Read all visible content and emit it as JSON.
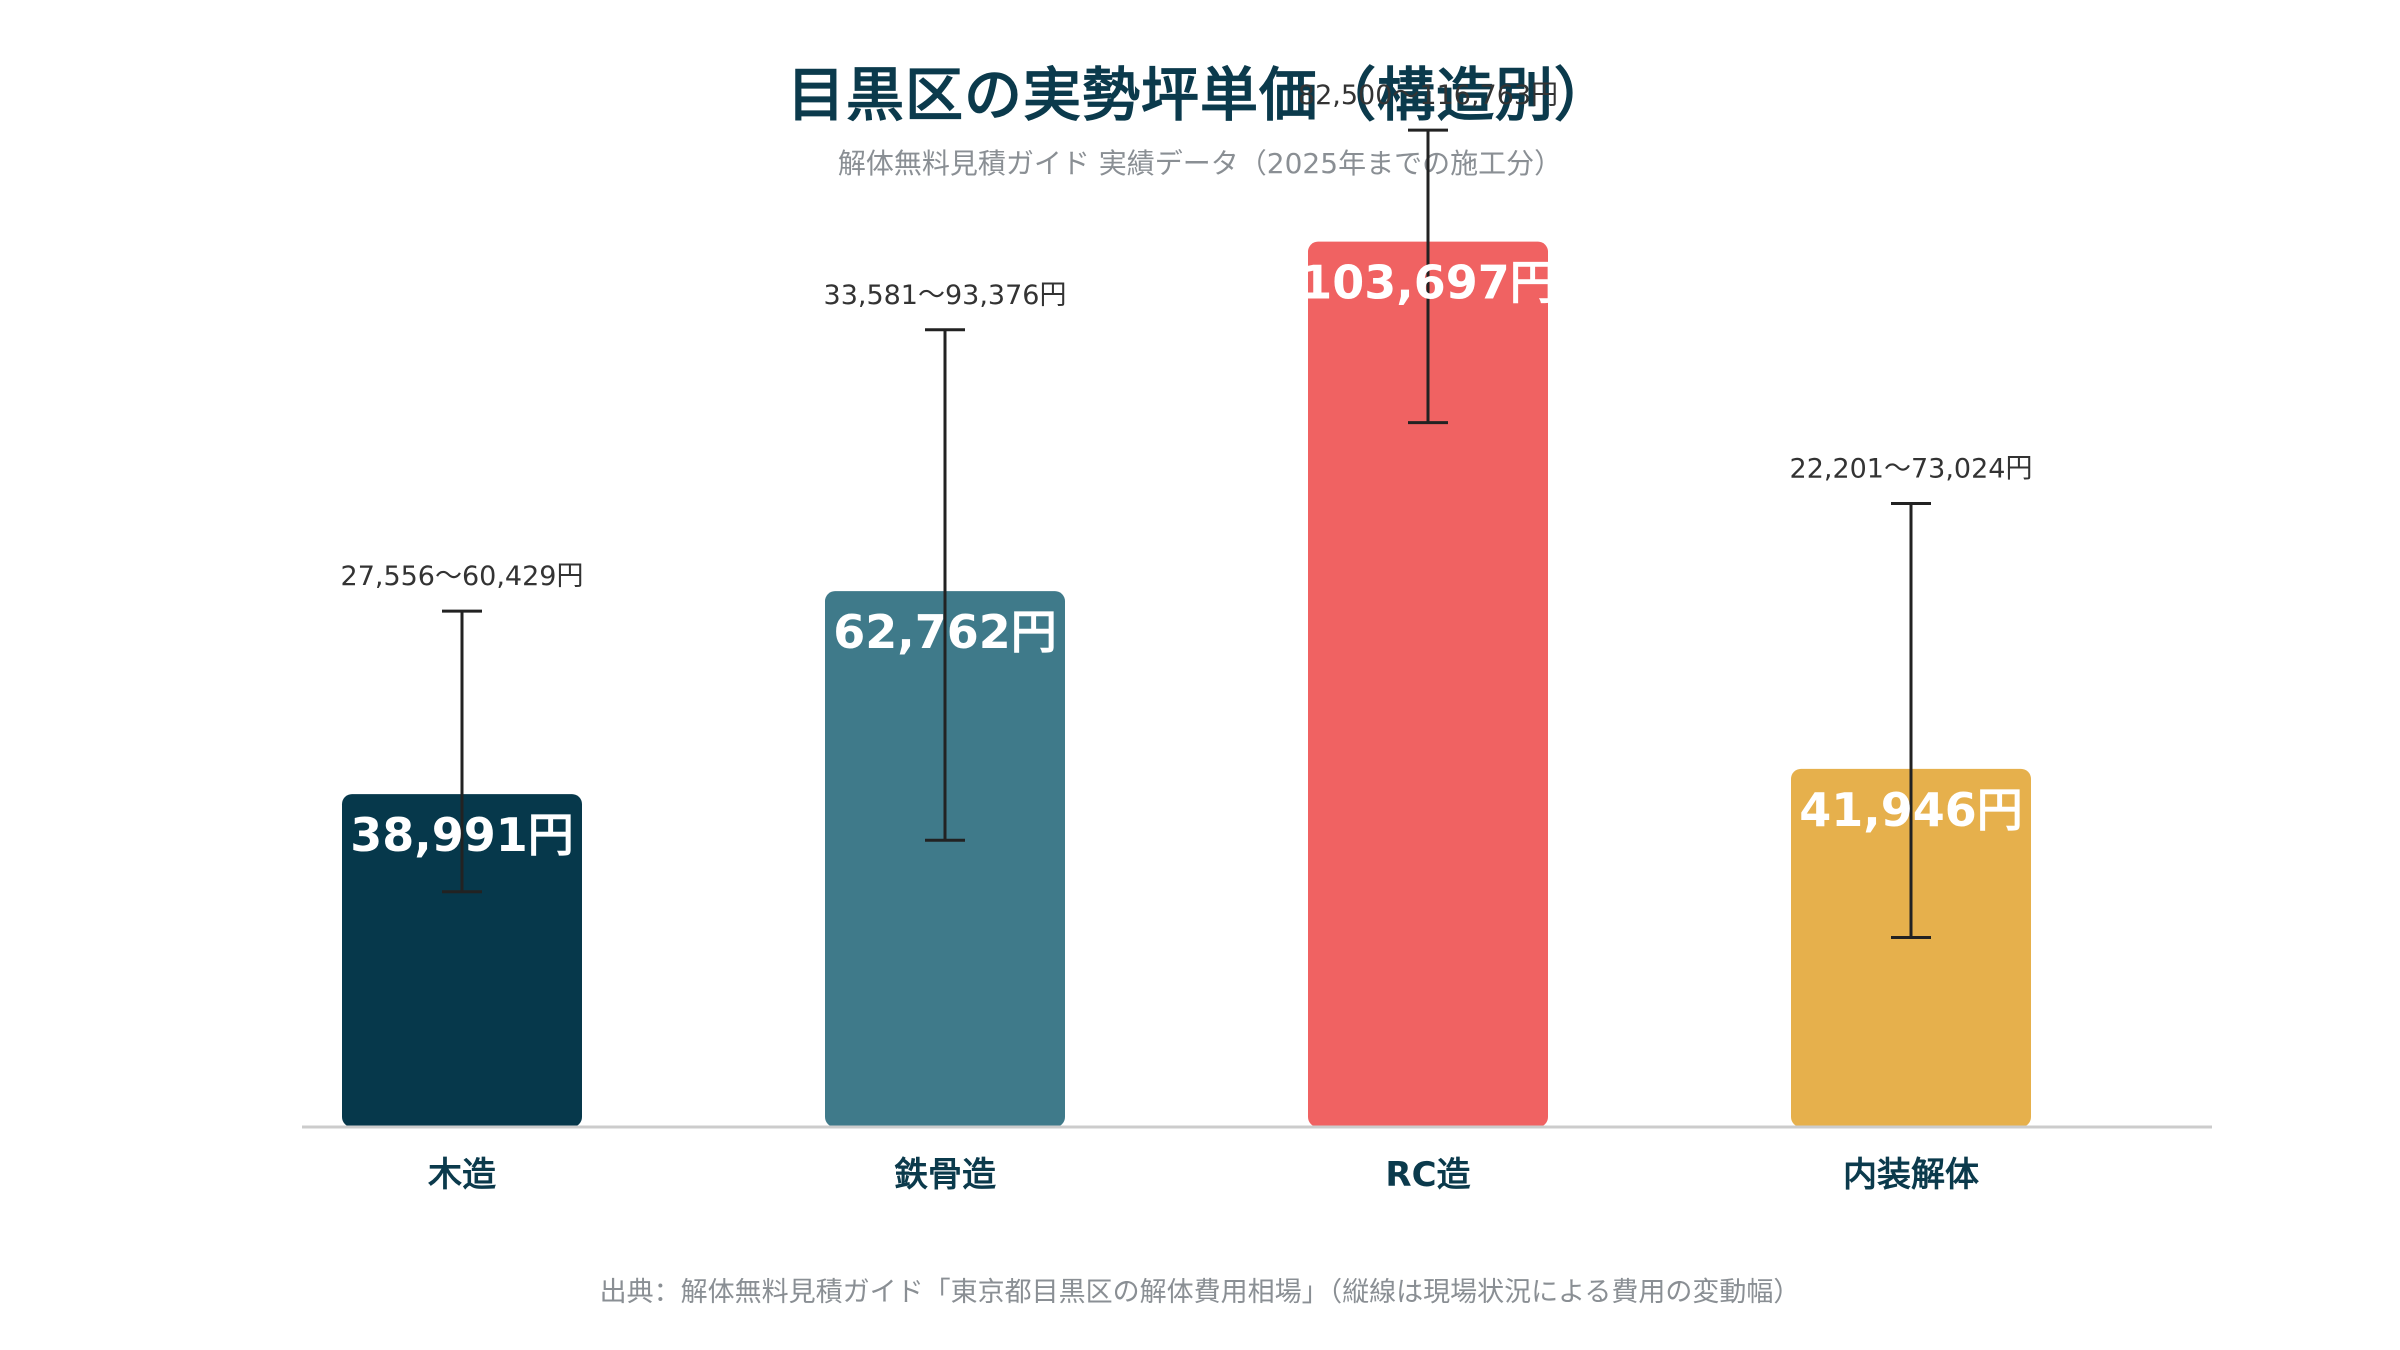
{
  "title": "目黒区の実勢坪単価（構造別）",
  "subtitle": "解体無料見積ガイド 実績データ（2025年までの施工分）",
  "footer": "出典：解体無料見積ガイド「東京都目黒区の解体費用相場」（縦線は現場状況による費用の変動幅）",
  "colors": {
    "title": "#0b3a4c",
    "subtitle": "#8a8f94",
    "axis": "#cccccc",
    "error_bar": "#222222",
    "bar_label": "#ffffff",
    "range_label": "#333333",
    "category_label": "#0b3a4c"
  },
  "chart_data": {
    "type": "bar",
    "title": "目黒区の実勢坪単価（構造別）",
    "xlabel": "",
    "ylabel": "",
    "ylim": [
      0,
      132000
    ],
    "grid": false,
    "categories": [
      "木造",
      "鉄骨造",
      "RC造",
      "内装解体"
    ],
    "values": [
      38991,
      62762,
      103697,
      41946
    ],
    "value_labels": [
      "38,991円",
      "62,762円",
      "103,697円",
      "41,946円"
    ],
    "ranges": [
      [
        27556,
        60429
      ],
      [
        33581,
        93376
      ],
      [
        82500,
        116763
      ],
      [
        22201,
        73024
      ]
    ],
    "range_labels": [
      "27,556〜60,429円",
      "33,581〜93,376円",
      "82,500〜116,763円",
      "22,201〜73,024円"
    ],
    "bar_colors": [
      "#06384b",
      "#3f7a8a",
      "#f06262",
      "#e6b04c"
    ]
  }
}
